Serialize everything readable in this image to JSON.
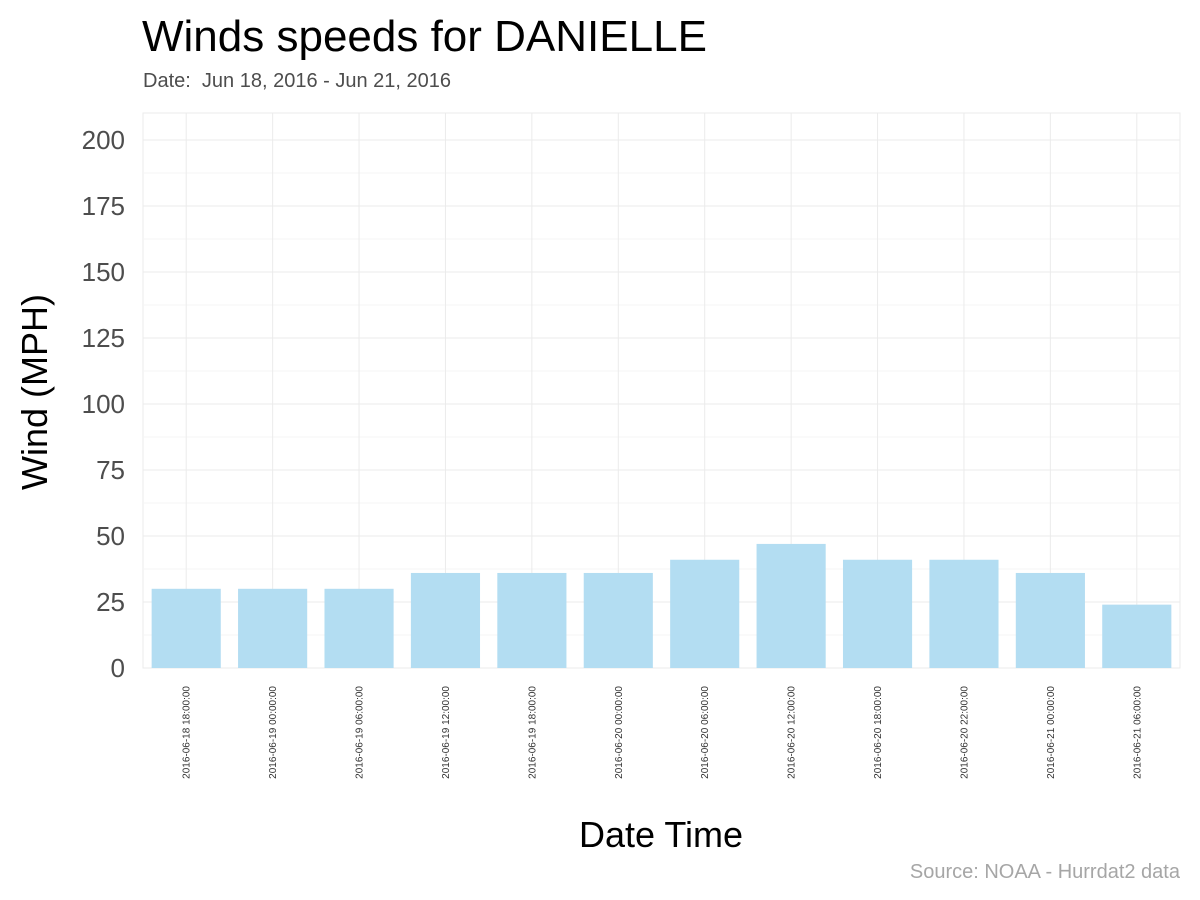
{
  "chart_data": {
    "type": "bar",
    "title": "Winds speeds for DANIELLE",
    "subtitle": "Date:  Jun 18, 2016 - Jun 21, 2016",
    "caption": "Source: NOAA - Hurrdat2 data",
    "xlabel": "Date Time",
    "ylabel": "Wind (MPH)",
    "ylim": [
      0,
      210
    ],
    "yticks": [
      0,
      25,
      50,
      75,
      100,
      125,
      150,
      175,
      200
    ],
    "grid": true,
    "bar_color": "#b3ddf2",
    "categories": [
      "2016-06-18 18:00:00",
      "2016-06-19 00:00:00",
      "2016-06-19 06:00:00",
      "2016-06-19 12:00:00",
      "2016-06-19 18:00:00",
      "2016-06-20 00:00:00",
      "2016-06-20 06:00:00",
      "2016-06-20 12:00:00",
      "2016-06-20 18:00:00",
      "2016-06-20 22:00:00",
      "2016-06-21 00:00:00",
      "2016-06-21 06:00:00"
    ],
    "values": [
      30,
      30,
      30,
      36,
      36,
      36,
      41,
      47,
      41,
      41,
      36,
      24
    ]
  }
}
